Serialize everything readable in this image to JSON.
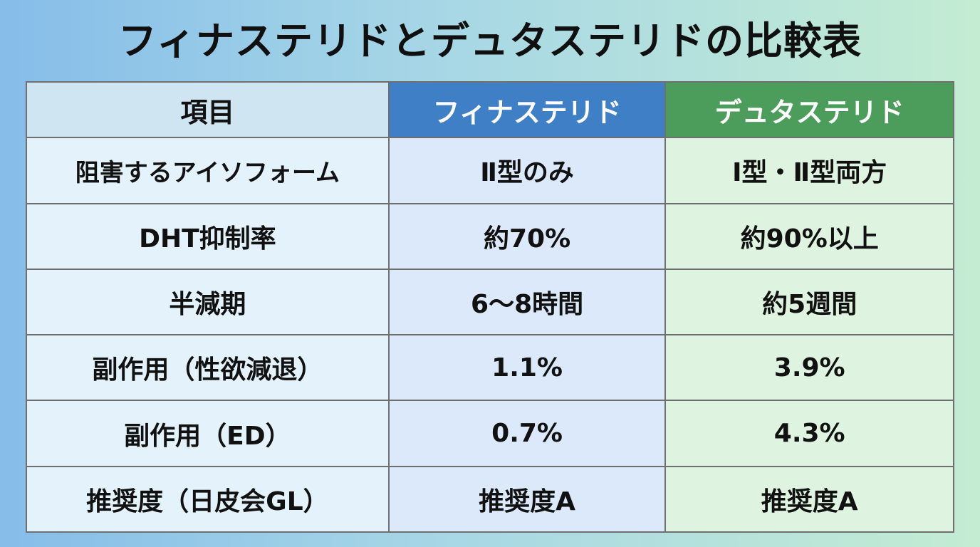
{
  "title": "フィナステリドとデュタステリドの比較表",
  "table": {
    "headers": {
      "item": "項目",
      "finasteride": "フィナステリド",
      "dutasteride": "デュタステリド"
    },
    "rows": [
      {
        "item": "阻害するアイソフォーム",
        "finasteride": "Ⅱ型のみ",
        "dutasteride": "Ⅰ型・Ⅱ型両方"
      },
      {
        "item": "DHT抑制率",
        "finasteride": "約70%",
        "dutasteride": "約90%以上"
      },
      {
        "item": "半減期",
        "finasteride": "6〜8時間",
        "dutasteride": "約5週間"
      },
      {
        "item": "副作用（性欲減退）",
        "finasteride": "1.1%",
        "dutasteride": "3.9%"
      },
      {
        "item": "副作用（ED）",
        "finasteride": "0.7%",
        "dutasteride": "4.3%"
      },
      {
        "item": "推奨度（日皮会GL）",
        "finasteride": "推奨度A",
        "dutasteride": "推奨度A"
      }
    ]
  },
  "colors": {
    "finasteride_header": "#3f7fc6",
    "dutasteride_header": "#4c9c5b",
    "item_header": "#cfe6f2"
  }
}
